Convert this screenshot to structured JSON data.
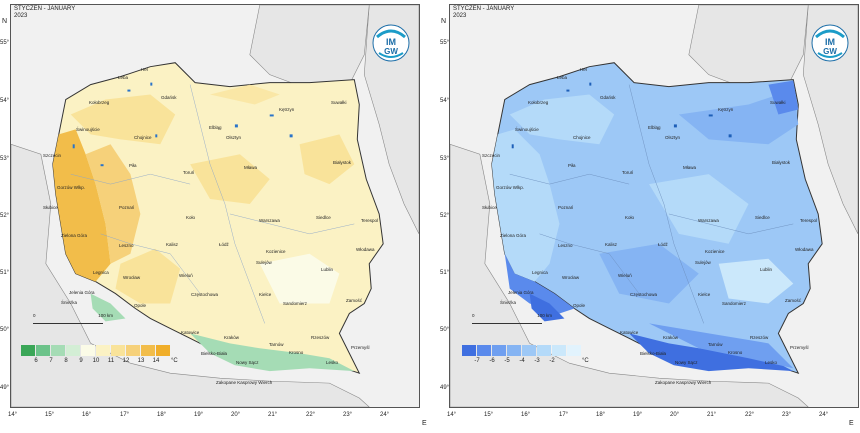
{
  "maps": [
    {
      "id": "left",
      "title_line1": "STYCZEŃ - JANUARY",
      "title_line2": "2023",
      "fill_light": "#fbf2c4",
      "fill_mid": "#f6d77a",
      "fill_dark": "#f0b83a",
      "legend": {
        "colors": [
          "#3aa657",
          "#6cc38a",
          "#a5dcb5",
          "#d3eed5",
          "#fbfbe7",
          "#fbf2c4",
          "#f9e39a",
          "#f6d17a",
          "#f2bd4a",
          "#f0ae2a"
        ],
        "labels": [
          "6",
          "7",
          "8",
          "9",
          "10",
          "11",
          "12",
          "13",
          "14"
        ],
        "unit": "°C"
      }
    },
    {
      "id": "right",
      "title_line1": "STYCZEŃ - JANUARY",
      "title_line2": "2023",
      "fill_light": "#bfe1fb",
      "fill_mid": "#8cc7f5",
      "fill_dark": "#4a8ee8",
      "legend": {
        "colors": [
          "#3f6fe0",
          "#5a8aec",
          "#6f9ff0",
          "#85b4f3",
          "#9dc8f6",
          "#b4daf9",
          "#cbe8fb",
          "#e2f3fd"
        ],
        "labels": [
          "-7",
          "-6",
          "-5",
          "-4",
          "-3",
          "-2"
        ],
        "unit": "°C"
      }
    }
  ],
  "logo": {
    "line1": "IM",
    "line2": "GW"
  },
  "axes": {
    "north": "N",
    "east": "E",
    "lat_labels": [
      "55°",
      "54°",
      "53°",
      "52°",
      "51°",
      "50°",
      "49°"
    ],
    "lon_labels": [
      "14°",
      "15°",
      "16°",
      "17°",
      "18°",
      "19°",
      "20°",
      "21°",
      "22°",
      "23°",
      "24°"
    ]
  },
  "scale_bar": {
    "start": "0",
    "end": "100 km"
  },
  "cities": [
    "Łeba",
    "Hel",
    "Gdańsk",
    "Elbląg",
    "Suwałki",
    "Kętrzyn",
    "Kołobrzeg",
    "Koszalin",
    "Świnoujście",
    "Olsztyn",
    "Mikołajki",
    "Szczecin",
    "Chojnice",
    "Białystok",
    "Piła",
    "Toruń",
    "Mława",
    "Gorzów Wlkp.",
    "Płock",
    "Poznań",
    "Koło",
    "Słubice",
    "Warszawa",
    "Siedlce",
    "Terespol",
    "Legnica",
    "Zielona Góra",
    "Kalisz",
    "Łódź",
    "Sulejów",
    "Lublin",
    "Włodawa",
    "Leszno",
    "Kozienice",
    "Wrocław",
    "Wieluń",
    "Opole",
    "Racibórz",
    "Częstochowa",
    "Kielce",
    "Sandomierz",
    "Zamość",
    "Jelenia Góra",
    "Śnieżka",
    "Katowice",
    "Kraków",
    "Tarnów",
    "Rzeszów",
    "Przemyśl",
    "Bielsko-Biała",
    "Nowy Sącz",
    "Zakopane",
    "Krosno",
    "Lesko",
    "Zakopane Kasprowy Wierch"
  ]
}
